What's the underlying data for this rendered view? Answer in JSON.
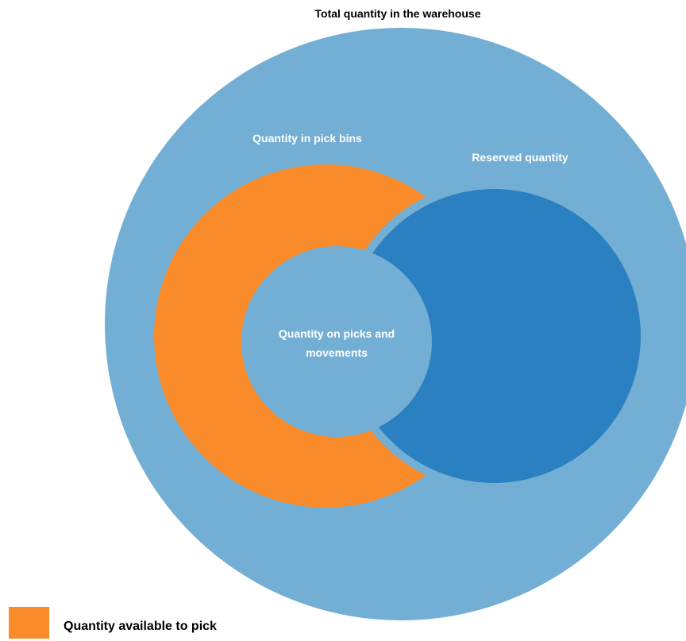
{
  "diagram": {
    "outer_label": "Total quantity in the warehouse",
    "pick_bins_label": "Quantity in pick bins",
    "reserved_label": "Reserved quantity",
    "picks_movements_label": [
      "Quantity on picks and",
      "movements"
    ],
    "colors": {
      "outer": "#73AED4",
      "pick_bins": "#F98B2A",
      "reserved": "#2A80C1",
      "inner": "#73AED4",
      "label_dark": "#000000",
      "label_light": "#FFFFFF"
    }
  },
  "legend": {
    "label": "Quantity available to pick",
    "swatch_color": "#F98B2A"
  }
}
